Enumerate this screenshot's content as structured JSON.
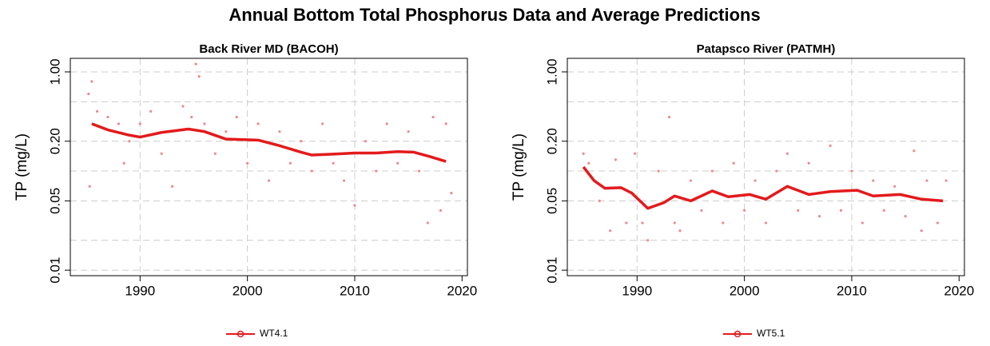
{
  "title": "Annual Bottom Total Phosphorus Data and Average Predictions",
  "chart_data": [
    {
      "type": "scatter",
      "title": "Back River MD (BACOH)",
      "ylabel": "TP (mg/L)",
      "log_y": true,
      "xlim": [
        1983.5,
        2020.5
      ],
      "xticks": [
        1990,
        2000,
        2010,
        2020
      ],
      "ylim": [
        0.0088,
        1.37
      ],
      "yticks": [
        0.01,
        0.05,
        {
          "value": 0.2,
          "label": "0.20"
        },
        {
          "value": 1,
          "label": "1.00"
        }
      ],
      "ygrid": [
        0.01,
        0.02,
        0.05,
        0.1,
        0.2,
        0.5,
        1
      ],
      "xgrid": [
        1990,
        2000,
        2010
      ],
      "grid": true,
      "points": {
        "color": "#ee8a8a",
        "x": [
          1985.2,
          1985.5,
          1985.3,
          1986,
          1987,
          1988,
          1988.5,
          1989,
          1990,
          1991,
          1992,
          1993,
          1994,
          1994.8,
          1995.2,
          1995.5,
          1996,
          1997,
          1998,
          1999,
          2000,
          2001,
          2002,
          2003,
          2004,
          2005,
          2006,
          2007,
          2008,
          2009,
          2010,
          2011,
          2012,
          2013,
          2014,
          2015,
          2016,
          2016.8,
          2017.3,
          2018,
          2018.5,
          2019
        ],
        "values": [
          0.6,
          0.8,
          0.07,
          0.4,
          0.35,
          0.3,
          0.12,
          0.2,
          0.3,
          0.4,
          0.15,
          0.07,
          0.45,
          0.35,
          1.2,
          0.9,
          0.3,
          0.15,
          0.25,
          0.35,
          0.12,
          0.3,
          0.08,
          0.25,
          0.12,
          0.2,
          0.1,
          0.3,
          0.12,
          0.08,
          0.045,
          0.2,
          0.1,
          0.3,
          0.12,
          0.25,
          0.1,
          0.03,
          0.35,
          0.04,
          0.3,
          0.06
        ]
      },
      "series": [
        {
          "name": "WT4.1",
          "color": "#e31a1c",
          "x": [
            1985.5,
            1987,
            1989,
            1990,
            1992,
            1994.5,
            1996,
            1998,
            2001,
            2003,
            2005,
            2006,
            2008,
            2010,
            2012,
            2014,
            2015.5,
            2017,
            2018.5
          ],
          "values": [
            0.3,
            0.26,
            0.23,
            0.22,
            0.245,
            0.265,
            0.25,
            0.21,
            0.205,
            0.18,
            0.155,
            0.145,
            0.148,
            0.152,
            0.152,
            0.157,
            0.155,
            0.14,
            0.125
          ]
        }
      ]
    },
    {
      "type": "scatter",
      "title": "Patapsco River (PATMH)",
      "ylabel": "TP (mg/L)",
      "log_y": true,
      "xlim": [
        1983.5,
        2020.5
      ],
      "xticks": [
        1990,
        2000,
        2010,
        2020
      ],
      "ylim": [
        0.0088,
        1.37
      ],
      "yticks": [
        0.01,
        0.05,
        {
          "value": 0.2,
          "label": "0.20"
        },
        {
          "value": 1,
          "label": "1.00"
        }
      ],
      "ygrid": [
        0.01,
        0.02,
        0.05,
        0.1,
        0.2,
        0.5,
        1
      ],
      "xgrid": [
        1990,
        2000,
        2010
      ],
      "grid": true,
      "points": {
        "color": "#ee8a8a",
        "x": [
          1985,
          1985.5,
          1986.5,
          1987.5,
          1988,
          1989,
          1989.8,
          1990.5,
          1991,
          1992,
          1993,
          1993.5,
          1994,
          1995,
          1996,
          1997,
          1998,
          1999,
          2000,
          2001,
          2002,
          2003,
          2004,
          2005,
          2006,
          2007,
          2008,
          2009,
          2010,
          2011,
          2012,
          2013,
          2014,
          2015,
          2015.8,
          2016.5,
          2017,
          2018,
          2018.8
        ],
        "values": [
          0.15,
          0.12,
          0.05,
          0.025,
          0.13,
          0.03,
          0.15,
          0.03,
          0.02,
          0.1,
          0.35,
          0.03,
          0.025,
          0.08,
          0.04,
          0.1,
          0.03,
          0.12,
          0.04,
          0.08,
          0.03,
          0.1,
          0.15,
          0.04,
          0.12,
          0.035,
          0.18,
          0.04,
          0.1,
          0.03,
          0.08,
          0.04,
          0.07,
          0.035,
          0.16,
          0.025,
          0.08,
          0.03,
          0.08
        ]
      },
      "series": [
        {
          "name": "WT5.1",
          "color": "#e31a1c",
          "x": [
            1985,
            1986,
            1987,
            1988.5,
            1989.5,
            1991,
            1992.5,
            1993.5,
            1995,
            1997,
            1998.5,
            2000.5,
            2002,
            2004,
            2006,
            2008,
            2010.5,
            2012,
            2014.5,
            2016.5,
            2018.5
          ],
          "values": [
            0.11,
            0.08,
            0.067,
            0.068,
            0.06,
            0.042,
            0.048,
            0.056,
            0.05,
            0.063,
            0.055,
            0.058,
            0.052,
            0.07,
            0.058,
            0.062,
            0.064,
            0.056,
            0.058,
            0.052,
            0.05
          ]
        }
      ]
    }
  ]
}
